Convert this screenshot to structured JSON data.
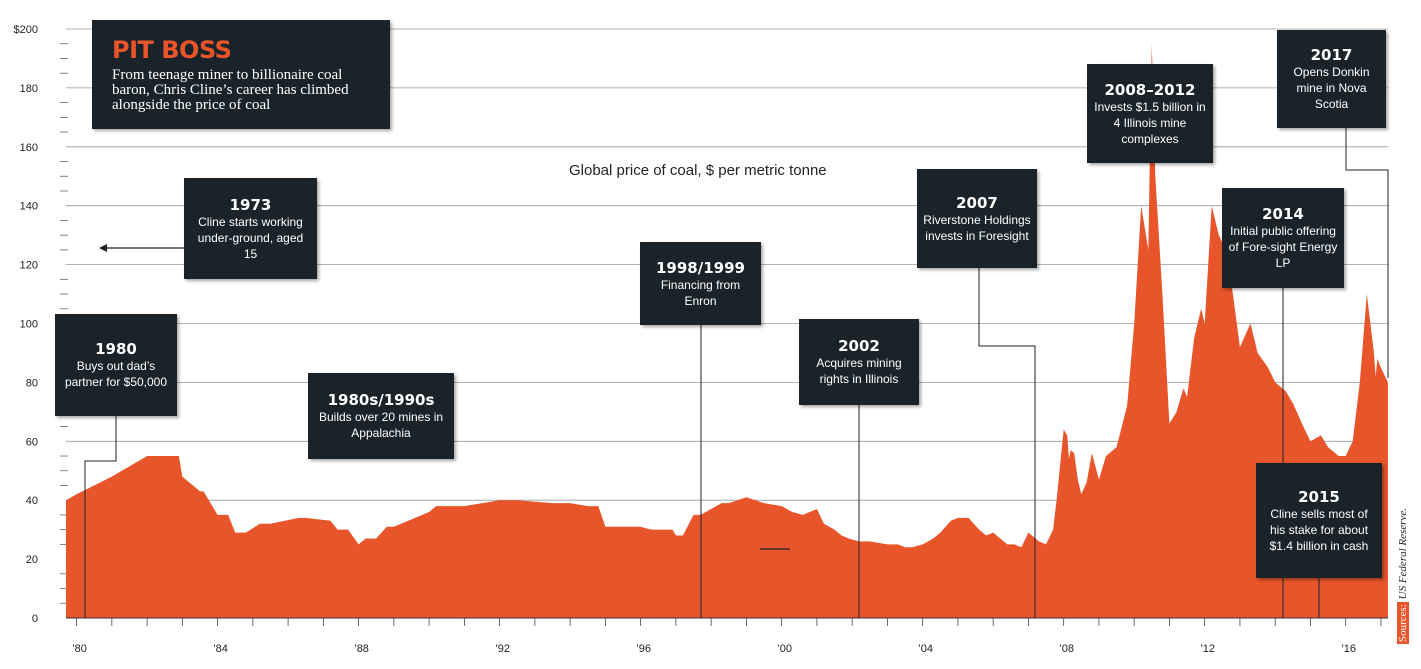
{
  "colors": {
    "area": "#e8552a",
    "box": "#1a2329",
    "accent": "#e8552a",
    "grid": "#888888"
  },
  "title": "PIT BOSS",
  "subtitle_text": "From teenage miner to billionaire coal baron, Chris Cline’s career has climbed alongside the price of coal",
  "series_label": "Global price of coal, $ per metric tonne",
  "source": {
    "label": "Sources:",
    "text": "US Federal Reserve."
  },
  "annotations": [
    {
      "id": "1973",
      "year": "1973",
      "text": "Cline starts working under-ground, aged 15"
    },
    {
      "id": "1980",
      "year": "1980",
      "text": "Buys out dad’s partner for $50,000"
    },
    {
      "id": "8090",
      "year": "1980s/1990s",
      "text": "Builds over 20 mines in Appalachia"
    },
    {
      "id": "9899",
      "year": "1998/1999",
      "text": "Financing from Enron"
    },
    {
      "id": "2002",
      "year": "2002",
      "text": "Acquires mining rights in Illinois"
    },
    {
      "id": "2007",
      "year": "2007",
      "text": "Riverstone Holdings invests in Foresight"
    },
    {
      "id": "0812",
      "year": "2008–2012",
      "text": "Invests $1.5 billion in 4 Illinois mine complexes"
    },
    {
      "id": "2014",
      "year": "2014",
      "text": "Initial public offering of Fore-sight Energy LP"
    },
    {
      "id": "2015",
      "year": "2015",
      "text": "Cline sells most of his stake for about $1.4 billion in cash"
    },
    {
      "id": "2017",
      "year": "2017",
      "text": "Opens Donkin mine in Nova Scotia"
    }
  ],
  "chart_data": {
    "type": "area",
    "title": "Global price of coal, $ per metric tonne",
    "ylim": [
      0,
      200
    ],
    "xlim": [
      1979.7,
      2017.2
    ],
    "y_ticks": [
      0,
      20,
      40,
      60,
      80,
      100,
      120,
      140,
      160,
      180,
      200
    ],
    "y_tick_labels": [
      "0",
      "20",
      "40",
      "60",
      "80",
      "100",
      "120",
      "140",
      "160",
      "180",
      "$200"
    ],
    "x_ticks": [
      1980,
      1984,
      1988,
      1992,
      1996,
      2000,
      2004,
      2008,
      2012,
      2016
    ],
    "x_tick_labels": [
      "’80",
      "’84",
      "’88",
      "’92",
      "’96",
      "’00",
      "’04",
      "’08",
      "’12",
      "’16"
    ],
    "x": [
      1979.7,
      1980,
      1981,
      1982,
      1982.9,
      1983.0,
      1983.5,
      1983.6,
      1984.0,
      1984.3,
      1984.5,
      1984.8,
      1985.2,
      1985.5,
      1986.3,
      1986.5,
      1987.2,
      1987.4,
      1987.7,
      1988.0,
      1988.2,
      1988.5,
      1988.8,
      1989.0,
      1990.0,
      1990.2,
      1990.9,
      1991.0,
      1992.0,
      1992.2,
      1992.5,
      1993.5,
      1993.8,
      1994.0,
      1994.5,
      1994.8,
      1995.0,
      1995.4,
      1995.6,
      1996.0,
      1996.3,
      1996.6,
      1996.9,
      1997.0,
      1997.2,
      1997.5,
      1997.7,
      1998.0,
      1998.3,
      1998.5,
      1999.0,
      1999.5,
      2000.0,
      2000.3,
      2000.6,
      2001.0,
      2001.2,
      2001.5,
      2001.7,
      2001.9,
      2002.2,
      2002.5,
      2003.0,
      2003.3,
      2003.5,
      2003.7,
      2004.0,
      2004.3,
      2004.5,
      2004.8,
      2005.0,
      2005.3,
      2005.6,
      2005.8,
      2006.0,
      2006.2,
      2006.4,
      2006.6,
      2006.8,
      2007.0,
      2007.3,
      2007.5,
      2007.7,
      2007.8,
      2007.9,
      2008.0,
      2008.1,
      2008.15,
      2008.2,
      2008.3,
      2008.4,
      2008.5,
      2008.65,
      2008.8,
      2009.0,
      2009.2,
      2009.5,
      2009.8,
      2010.0,
      2010.2,
      2010.4,
      2010.5,
      2010.6,
      2010.8,
      2011.0,
      2011.2,
      2011.4,
      2011.5,
      2011.7,
      2011.9,
      2012.0,
      2012.2,
      2012.4,
      2012.6,
      2012.8,
      2013.0,
      2013.3,
      2013.5,
      2013.8,
      2014.0,
      2014.3,
      2014.5,
      2014.8,
      2015.0,
      2015.3,
      2015.5,
      2015.8,
      2016.0,
      2016.2,
      2016.4,
      2016.6,
      2016.8,
      2016.85,
      2016.9,
      2017.0,
      2017.2
    ],
    "values": [
      40,
      42,
      48,
      55,
      55,
      48,
      43,
      43,
      35,
      35,
      29,
      29,
      32,
      32,
      34,
      34,
      33,
      30,
      30,
      25,
      27,
      27,
      31,
      31,
      36,
      38,
      38,
      38,
      40,
      40,
      40,
      39,
      39,
      39,
      38,
      38,
      31,
      31,
      31,
      31,
      30,
      30,
      30,
      28,
      28,
      35,
      35,
      37,
      39,
      39,
      41,
      39,
      38,
      36,
      35,
      37,
      32,
      30,
      28,
      27,
      26,
      26,
      25,
      25,
      24,
      24,
      25,
      27,
      29,
      33,
      34,
      34,
      30,
      28,
      29,
      27,
      25,
      25,
      24,
      29,
      26,
      25,
      30,
      40,
      52,
      64,
      62,
      54,
      57,
      56,
      47,
      42,
      46,
      56,
      47,
      55,
      58,
      72,
      100,
      140,
      125,
      195,
      150,
      110,
      66,
      70,
      78,
      75,
      95,
      105,
      100,
      140,
      130,
      125,
      110,
      92,
      100,
      90,
      85,
      80,
      77,
      73,
      65,
      60,
      62,
      58,
      55,
      55,
      60,
      80,
      110,
      90,
      82,
      88,
      85,
      80
    ]
  }
}
